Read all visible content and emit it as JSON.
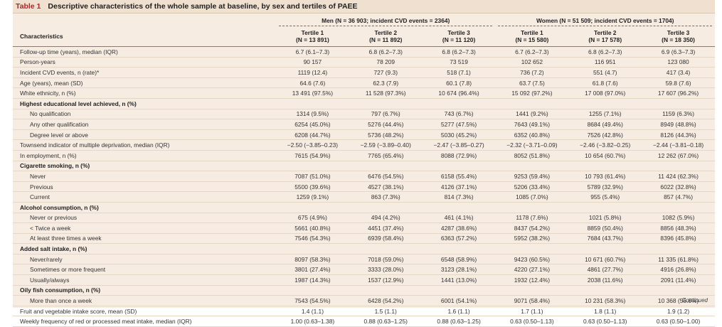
{
  "caption": {
    "label": "Table 1",
    "title": "Descriptive characteristics of the whole sample at baseline, by sex and tertiles of PAEE"
  },
  "groups": [
    "Men (N = 36 903; incident CVD events = 2364)",
    "Women (N = 51 509; incident CVD events = 1704)"
  ],
  "columns": {
    "characteristics": "Characteristics",
    "tertiles": [
      {
        "name": "Tertile 1",
        "n": "(N = 13 891)"
      },
      {
        "name": "Tertile 2",
        "n": "(N = 11 892)"
      },
      {
        "name": "Tertile 3",
        "n": "(N = 11 120)"
      },
      {
        "name": "Tertile 1",
        "n": "(N = 15 580)"
      },
      {
        "name": "Tertile 2",
        "n": "(N = 17 578)"
      },
      {
        "name": "Tertile 3",
        "n": "(N = 18 350)"
      }
    ]
  },
  "rows": [
    {
      "label": "Follow-up time (years), median (IQR)",
      "kind": "row",
      "values": [
        "6.7 (6.1–7.3)",
        "6.8 (6.2–7.3)",
        "6.8 (6.2–7.3)",
        "6.7 (6.2–7.3)",
        "6.8 (6.2–7.3)",
        "6.9 (6.3–7.3)"
      ]
    },
    {
      "label": "Person-years",
      "kind": "row",
      "values": [
        "90 157",
        "78 209",
        "73 519",
        "102 652",
        "116 951",
        "123 080"
      ]
    },
    {
      "label": "Incident CVD events, n (rate)*",
      "kind": "row",
      "values": [
        "1119 (12.4)",
        "727 (9.3)",
        "518 (7.1)",
        "736 (7.2)",
        "551 (4.7)",
        "417 (3.4)"
      ]
    },
    {
      "label": "Age (years), mean (SD)",
      "kind": "row",
      "values": [
        "64.6 (7.6)",
        "62.3 (7.9)",
        "60.1 (7.8)",
        "63.7 (7.5)",
        "61.8 (7.6)",
        "59.8 (7.6)"
      ]
    },
    {
      "label": "White ethnicity, n (%)",
      "kind": "row",
      "values": [
        "13 491 (97.5%)",
        "11 528 (97.3%)",
        "10 674 (96.4%)",
        "15 092 (97.2%)",
        "17 008 (97.0%)",
        "17 607 (96.2%)"
      ]
    },
    {
      "label": "Highest educational level achieved, n (%)",
      "kind": "section",
      "values": []
    },
    {
      "label": "No qualification",
      "kind": "sub",
      "values": [
        "1314 (9.5%)",
        "797 (6.7%)",
        "743 (6.7%)",
        "1441 (9.2%)",
        "1255 (7.1%)",
        "1159 (6.3%)"
      ]
    },
    {
      "label": "Any other qualification",
      "kind": "sub",
      "values": [
        "6254 (45.0%)",
        "5276 (44.4%)",
        "5277 (47.5%)",
        "7643 (49.1%)",
        "8684 (49.4%)",
        "8949 (48.8%)"
      ]
    },
    {
      "label": "Degree level or above",
      "kind": "sub",
      "values": [
        "6208 (44.7%)",
        "5736 (48.2%)",
        "5030 (45.2%)",
        "6352 (40.8%)",
        "7526 (42.8%)",
        "8126 (44.3%)"
      ]
    },
    {
      "label": "Townsend indicator of multiple deprivation, median (IQR)",
      "kind": "row",
      "values": [
        "−2.50 (−3.85–0.23)",
        "−2.59 (−3.89–0.40)",
        "−2.47 (−3.85–0.27)",
        "−2.32 (−3.71–0.09)",
        "−2.46 (−3.82–0.25)",
        "−2.44 (−3.81–0.18)"
      ]
    },
    {
      "label": "In employment, n (%)",
      "kind": "row",
      "values": [
        "7615 (54.9%)",
        "7765 (65.4%)",
        "8088 (72.9%)",
        "8052 (51.8%)",
        "10 654 (60.7%)",
        "12 262 (67.0%)"
      ]
    },
    {
      "label": "Cigarette smoking, n (%)",
      "kind": "section",
      "values": []
    },
    {
      "label": "Never",
      "kind": "sub",
      "values": [
        "7087 (51.0%)",
        "6476 (54.5%)",
        "6158 (55.4%)",
        "9253 (59.4%)",
        "10 793 (61.4%)",
        "11 424 (62.3%)"
      ]
    },
    {
      "label": "Previous",
      "kind": "sub",
      "values": [
        "5500 (39.6%)",
        "4527 (38.1%)",
        "4126 (37.1%)",
        "5206 (33.4%)",
        "5789 (32.9%)",
        "6022 (32.8%)"
      ]
    },
    {
      "label": "Current",
      "kind": "sub",
      "values": [
        "1259 (9.1%)",
        "863 (7.3%)",
        "814 (7.3%)",
        "1085 (7.0%)",
        "955 (5.4%)",
        "857 (4.7%)"
      ]
    },
    {
      "label": "Alcohol consumption, n (%)",
      "kind": "section",
      "values": []
    },
    {
      "label": "Never or previous",
      "kind": "sub",
      "values": [
        "675 (4.9%)",
        "494 (4.2%)",
        "461 (4.1%)",
        "1178 (7.6%)",
        "1021 (5.8%)",
        "1082 (5.9%)"
      ]
    },
    {
      "label": "< Twice a week",
      "kind": "sub",
      "values": [
        "5661 (40.8%)",
        "4451 (37.4%)",
        "4287 (38.6%)",
        "8437 (54.2%)",
        "8859 (50.4%)",
        "8856 (48.3%)"
      ]
    },
    {
      "label": "At least three times a week",
      "kind": "sub",
      "values": [
        "7546 (54.3%)",
        "6939 (58.4%)",
        "6363 (57.2%)",
        "5952 (38.2%)",
        "7684 (43.7%)",
        "8396 (45.8%)"
      ]
    },
    {
      "label": "Added salt intake, n (%)",
      "kind": "section",
      "values": []
    },
    {
      "label": "Never/rarely",
      "kind": "sub",
      "values": [
        "8097 (58.3%)",
        "7018 (59.0%)",
        "6548 (58.9%)",
        "9423 (60.5%)",
        "10 671 (60.7%)",
        "11 335 (61.8%)"
      ]
    },
    {
      "label": "Sometimes or more frequent",
      "kind": "sub",
      "values": [
        "3801 (27.4%)",
        "3333 (28.0%)",
        "3123 (28.1%)",
        "4220 (27.1%)",
        "4861 (27.7%)",
        "4916 (26.8%)"
      ]
    },
    {
      "label": "Usually/always",
      "kind": "sub",
      "values": [
        "1987 (14.3%)",
        "1537 (12.9%)",
        "1441 (13.0%)",
        "1932 (12.4%)",
        "2038 (11.6%)",
        "2091 (11.4%)"
      ]
    },
    {
      "label": "Oily fish consumption, n (%)",
      "kind": "section",
      "values": []
    },
    {
      "label": "More than once a week",
      "kind": "sub",
      "values": [
        "7543 (54.5%)",
        "6428 (54.2%)",
        "6001 (54.1%)",
        "9071 (58.4%)",
        "10 231 (58.3%)",
        "10 368 (56.6%)"
      ]
    },
    {
      "label": "Fruit and vegetable intake score, mean (SD)",
      "kind": "row",
      "values": [
        "1.4 (1.1)",
        "1.5 (1.1)",
        "1.6 (1.1)",
        "1.7 (1.1)",
        "1.8 (1.1)",
        "1.9 (1.2)"
      ]
    },
    {
      "label": "Weekly frequency of red or processed meat intake, median (IQR)",
      "kind": "row",
      "values": [
        "1.00 (0.63–1.38)",
        "0.88 (0.63–1.25)",
        "0.88 (0.63–1.25)",
        "0.63 (0.50–1.13)",
        "0.63 (0.50–1.13)",
        "0.63 (0.50–1.00)"
      ]
    }
  ],
  "footer": "Continued"
}
